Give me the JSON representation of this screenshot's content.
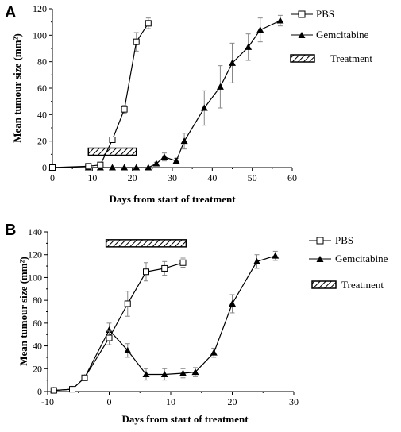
{
  "figure": {
    "legend_labels": {
      "pbs": "PBS",
      "gemcitabine": "Gemcitabine",
      "treatment": "Treatment"
    }
  },
  "chart_data": [
    {
      "panel": "A",
      "type": "line",
      "xlabel": "Days from start of treatment",
      "ylabel": "Mean tumour size (mm²)",
      "xlim": [
        0,
        60
      ],
      "ylim": [
        0,
        120
      ],
      "xticks": [
        0,
        10,
        20,
        30,
        40,
        50,
        60
      ],
      "yticks": [
        0,
        20,
        40,
        60,
        80,
        100,
        120
      ],
      "grid": false,
      "legend_position": "top-right",
      "treatment_bar": {
        "start": 9,
        "end": 21,
        "y": 12
      },
      "series": [
        {
          "name": "PBS",
          "marker": "open-square",
          "x": [
            0,
            9,
            12,
            15,
            18,
            21,
            24
          ],
          "y": [
            0,
            1,
            2,
            21,
            44,
            95,
            109
          ],
          "err": [
            0,
            0.5,
            1,
            2,
            3,
            7,
            4
          ]
        },
        {
          "name": "Gemcitabine",
          "marker": "filled-triangle",
          "x": [
            0,
            9,
            12,
            15,
            18,
            21,
            24,
            26,
            28,
            31,
            33,
            38,
            42,
            45,
            49,
            52,
            57
          ],
          "y": [
            0,
            0,
            0,
            0,
            0,
            0,
            0,
            3,
            8,
            5,
            20,
            45,
            61,
            79,
            91,
            104,
            111
          ],
          "err": [
            0,
            0,
            0,
            0,
            0,
            0,
            0,
            1,
            3,
            2,
            6,
            13,
            16,
            15,
            10,
            9,
            4
          ]
        }
      ]
    },
    {
      "panel": "B",
      "type": "line",
      "xlabel": "Days from start of treatment",
      "ylabel": "Mean tumour size (mm²)",
      "xlim": [
        -10,
        30
      ],
      "ylim": [
        0,
        140
      ],
      "xticks": [
        -10,
        0,
        10,
        20,
        30
      ],
      "yticks": [
        0,
        20,
        40,
        60,
        80,
        100,
        120,
        140
      ],
      "grid": false,
      "legend_position": "top-right",
      "treatment_bar": {
        "start": -0.5,
        "end": 12.5,
        "y": 130
      },
      "series": [
        {
          "name": "PBS",
          "marker": "open-square",
          "x": [
            -9,
            -6,
            -4,
            0,
            3,
            6,
            9,
            12
          ],
          "y": [
            1,
            2,
            12,
            47,
            77,
            105,
            108,
            113
          ],
          "err": [
            0.5,
            1,
            2,
            6,
            11,
            8,
            6,
            4
          ]
        },
        {
          "name": "Gemcitabine",
          "marker": "filled-triangle",
          "x": [
            -9,
            -6,
            -4,
            0,
            3,
            6,
            9,
            12,
            14,
            17,
            20,
            24,
            27
          ],
          "y": [
            1,
            2,
            12,
            54,
            36,
            15,
            15,
            16,
            17,
            34,
            77,
            114,
            119
          ],
          "err": [
            0.5,
            1,
            2,
            6,
            6,
            5,
            5,
            4,
            4,
            4,
            8,
            6,
            4
          ]
        }
      ]
    }
  ]
}
